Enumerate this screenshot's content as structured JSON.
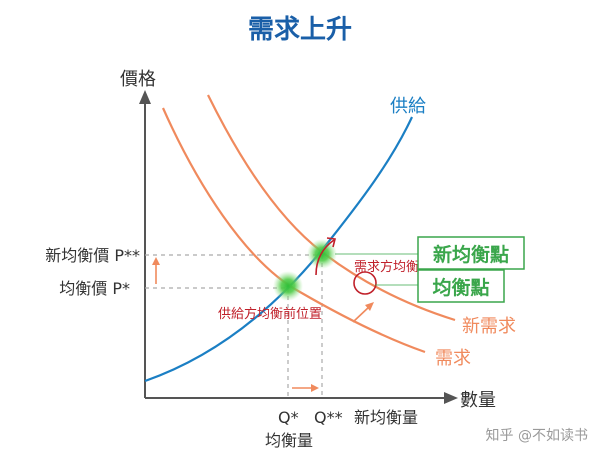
{
  "title": "需求上升",
  "axes": {
    "y_label": "價格",
    "x_label": "數量"
  },
  "curves": {
    "supply_label": "供給",
    "demand_label": "需求",
    "new_demand_label": "新需求"
  },
  "price_labels": {
    "new_price": "新均衡價 P**",
    "old_price": "均衡價 P*"
  },
  "quantity_labels": {
    "q_star": "Q*",
    "q_double_star": "Q**",
    "new_quantity": "新均衡量",
    "old_quantity": "均衡量"
  },
  "boxes": {
    "new_equilibrium": "新均衡點",
    "equilibrium": "均衡點"
  },
  "annotations": {
    "demand_before": "需求方均衡前位置",
    "supply_before": "供給方均衡前位置"
  },
  "watermark": "知乎 @不如读书",
  "colors": {
    "title": "#1a5fa8",
    "supply": "#1b7fc4",
    "demand": "#f08a5d",
    "annotation": "#c0202a",
    "box": "#3aa64b",
    "axis": "#555555",
    "text": "#333333"
  }
}
